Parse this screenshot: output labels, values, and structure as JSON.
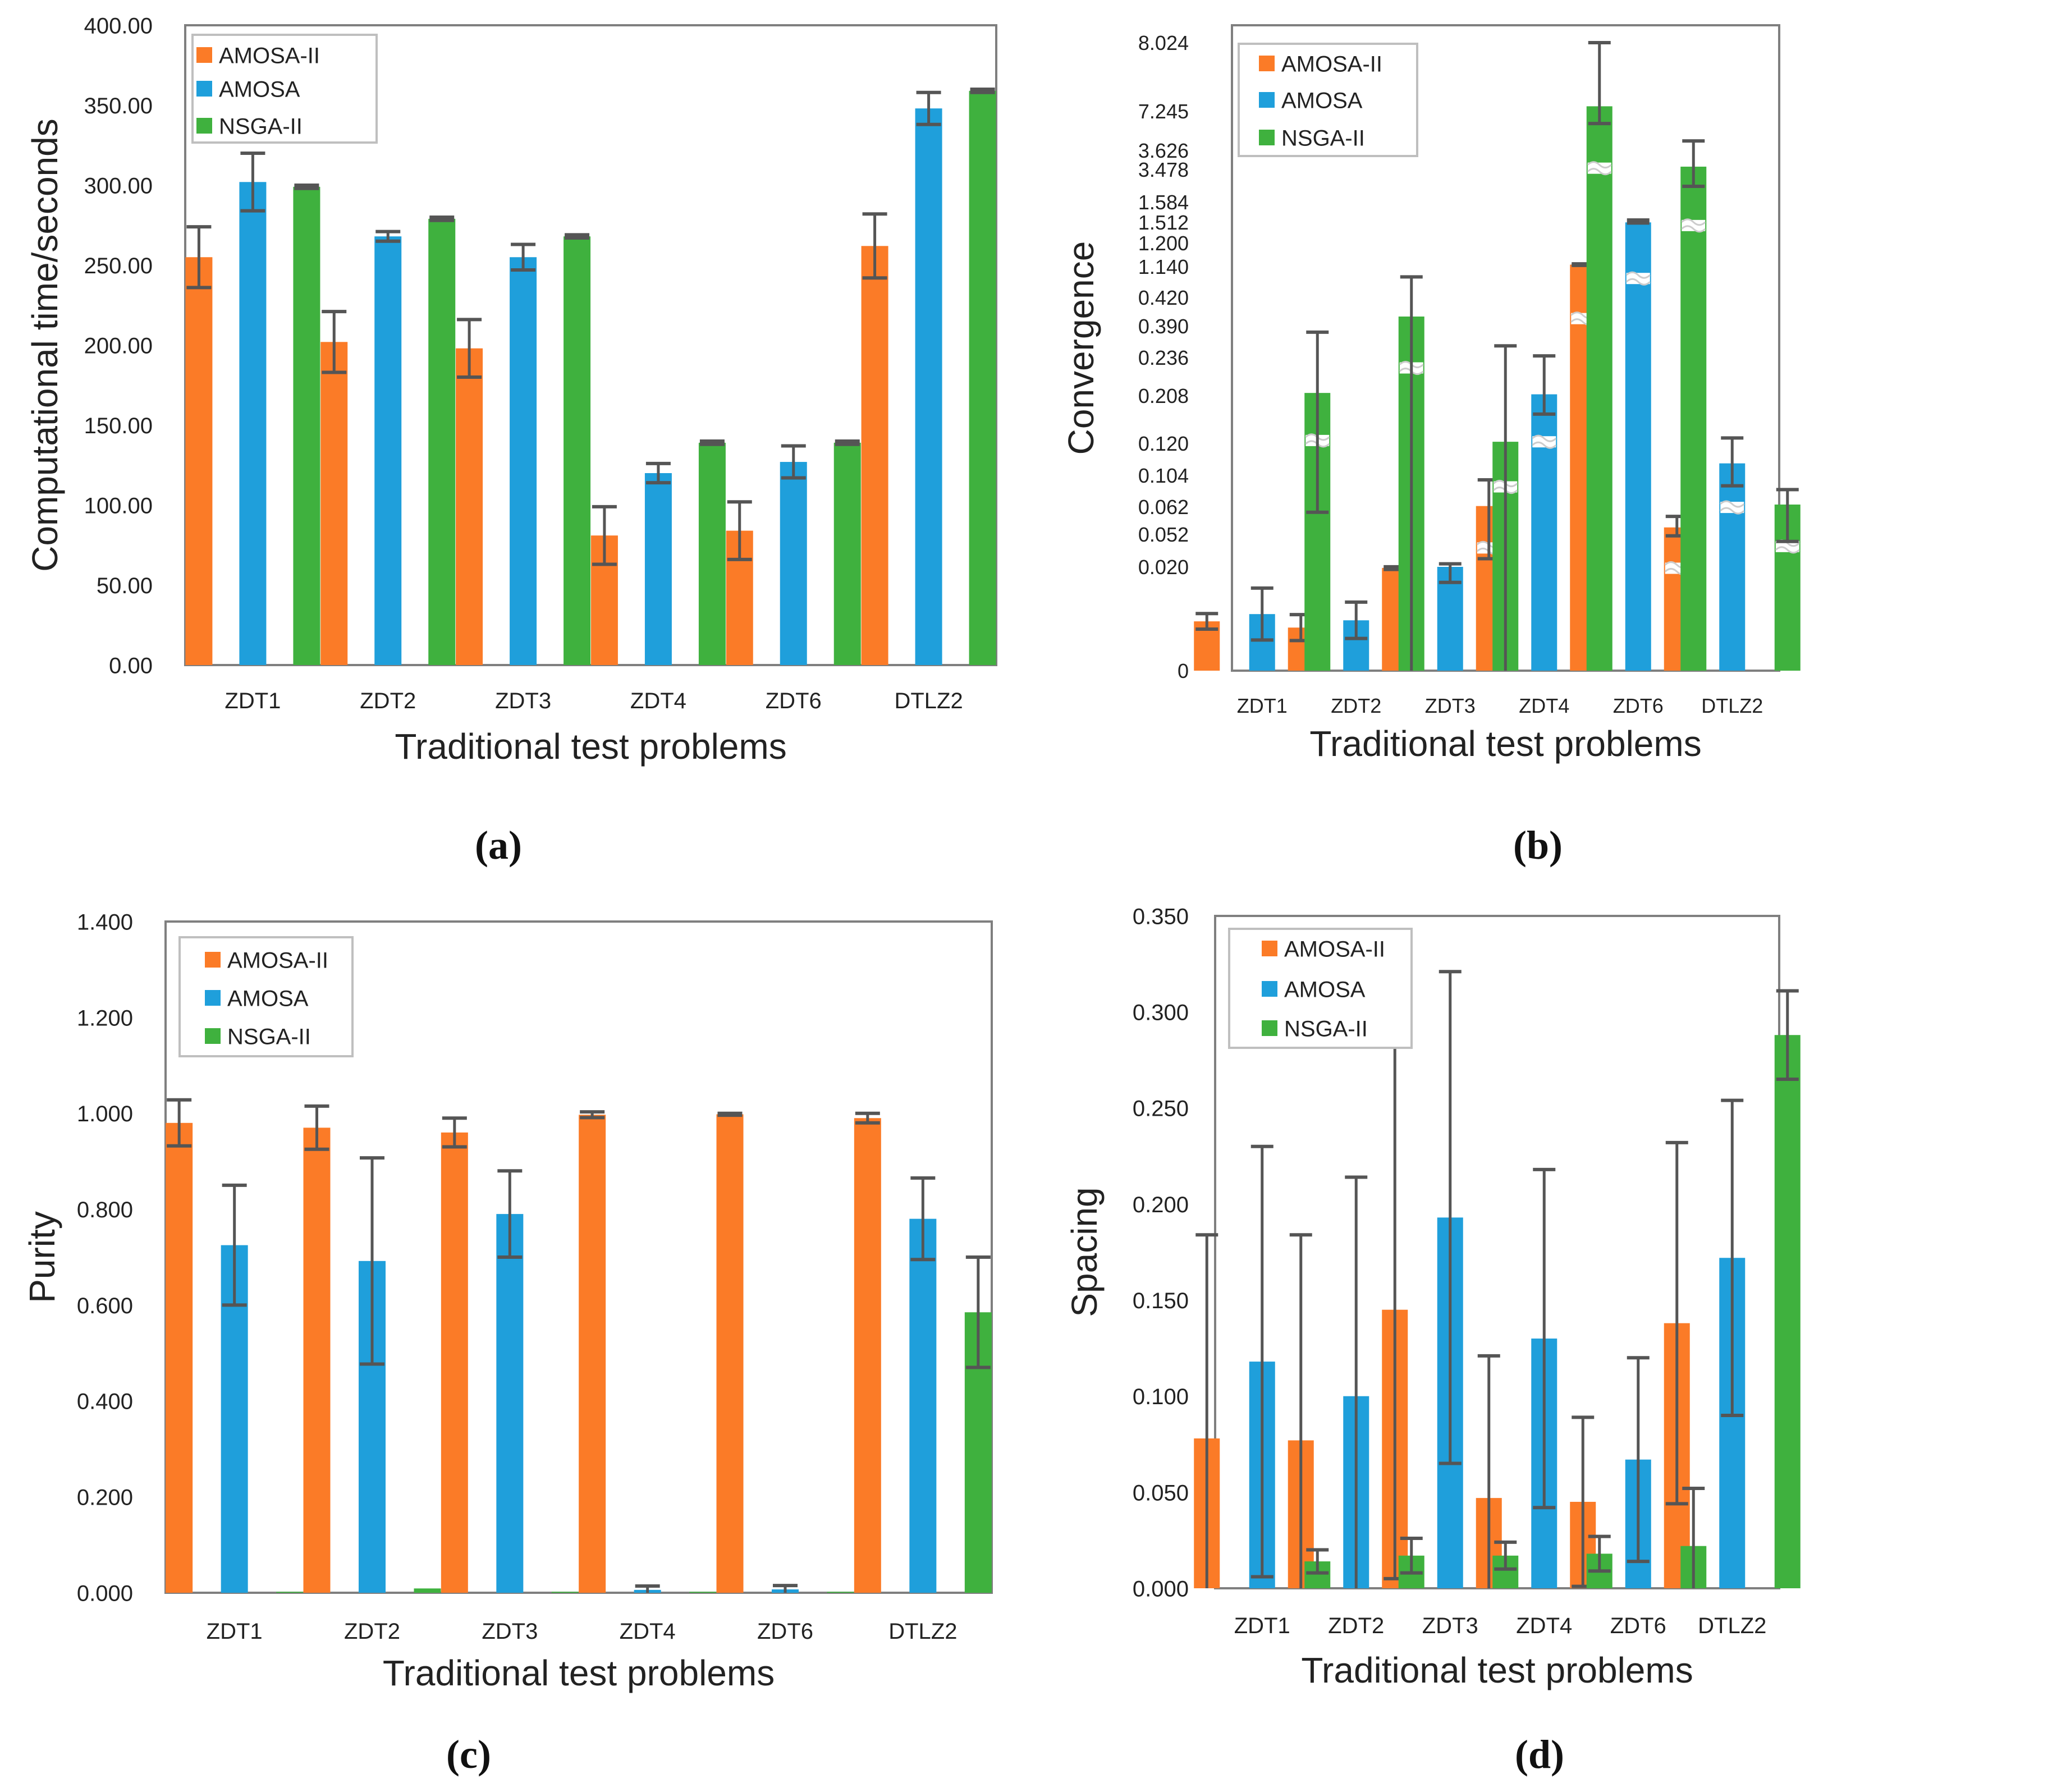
{
  "colors": {
    "AMOSA-II": "#fb7b27",
    "AMOSA": "#1f9fdb",
    "NSGA-II": "#3fb13e",
    "error_bar": "#555555",
    "frame": "#7f7f7f",
    "legend_border": "#bfbfbf"
  },
  "chart_data": [
    {
      "panel": "(a)",
      "type": "bar",
      "ylabel": "Computational time/seconds",
      "xlabel": "Traditional test problems",
      "categories": [
        "ZDT1",
        "ZDT2",
        "ZDT3",
        "ZDT4",
        "ZDT6",
        "DTLZ2"
      ],
      "ylim": [
        0,
        400
      ],
      "yticks": [
        "0.00",
        "50.00",
        "100.00",
        "150.00",
        "200.00",
        "250.00",
        "300.00",
        "350.00",
        "400.00"
      ],
      "legend": [
        "AMOSA-II",
        "AMOSA",
        "NSGA-II"
      ],
      "legend_position": "top-left",
      "series": [
        {
          "name": "AMOSA-II",
          "values": [
            255,
            202,
            198,
            81,
            84,
            262
          ],
          "errors": [
            19,
            19,
            18,
            18,
            18,
            20
          ]
        },
        {
          "name": "AMOSA",
          "values": [
            302,
            268,
            255,
            120,
            127,
            348
          ],
          "errors": [
            18,
            3,
            8,
            6,
            10,
            10
          ]
        },
        {
          "name": "NSGA-II",
          "values": [
            299,
            279,
            268,
            139,
            139,
            359
          ],
          "errors": [
            1,
            1,
            1,
            1,
            1,
            1
          ]
        }
      ]
    },
    {
      "panel": "(b)",
      "type": "bar",
      "scale": "broken",
      "ylabel": "Convergence",
      "xlabel": "Traditional test problems",
      "categories": [
        "ZDT1",
        "ZDT2",
        "ZDT3",
        "ZDT4",
        "ZDT6",
        "DTLZ2"
      ],
      "yticks": [
        "0",
        "0.020",
        "0.052",
        "0.062",
        "0.104",
        "0.120",
        "0.208",
        "0.236",
        "0.390",
        "0.420",
        "1.140",
        "1.200",
        "1.512",
        "1.584",
        "3.478",
        "3.626",
        "7.245",
        "8.024"
      ],
      "legend": [
        "AMOSA-II",
        "AMOSA",
        "NSGA-II"
      ],
      "legend_position": "top-left",
      "series": [
        {
          "name": "AMOSA-II",
          "values": [
            0.0095,
            0.0083,
            0.0198,
            0.063,
            1.145,
            0.0545
          ],
          "errors": [
            0.0015,
            0.0025,
            0.0003,
            0.035,
            0.002,
            0.004
          ],
          "broken": [
            false,
            false,
            false,
            true,
            true,
            true
          ]
        },
        {
          "name": "AMOSA",
          "values": [
            0.0109,
            0.0097,
            0.02,
            0.209,
            1.51,
            0.11
          ],
          "errors": [
            0.005,
            0.0035,
            0.003,
            0.035,
            0.01,
            0.02
          ],
          "broken": [
            false,
            false,
            false,
            true,
            true,
            true
          ]
        },
        {
          "name": "NSGA-II",
          "values": [
            0.21,
            0.4,
            0.123,
            7.3,
            3.5,
            0.065
          ],
          "errors": [
            0.15,
            0.5,
            0.17,
            1.2,
            1.0,
            0.02
          ],
          "broken": [
            true,
            true,
            true,
            true,
            true,
            true
          ]
        }
      ]
    },
    {
      "panel": "(c)",
      "type": "bar",
      "ylabel": "Purity",
      "xlabel": "Traditional test problems",
      "categories": [
        "ZDT1",
        "ZDT2",
        "ZDT3",
        "ZDT4",
        "ZDT6",
        "DTLZ2"
      ],
      "ylim": [
        0,
        1.4
      ],
      "yticks": [
        "0.000",
        "0.200",
        "0.400",
        "0.600",
        "0.800",
        "1.000",
        "1.200",
        "1.400"
      ],
      "legend": [
        "AMOSA-II",
        "AMOSA",
        "NSGA-II"
      ],
      "legend_position": "top-left",
      "series": [
        {
          "name": "AMOSA-II",
          "values": [
            0.98,
            0.97,
            0.96,
            0.997,
            0.998,
            0.99
          ],
          "errors": [
            0.048,
            0.045,
            0.03,
            0.006,
            0.002,
            0.01
          ]
        },
        {
          "name": "AMOSA",
          "values": [
            0.725,
            0.692,
            0.79,
            0.006,
            0.007,
            0.78
          ],
          "errors": [
            0.125,
            0.215,
            0.09,
            0.008,
            0.008,
            0.085
          ]
        },
        {
          "name": "NSGA-II",
          "values": [
            0.002,
            0.009,
            0.002,
            0.002,
            0.002,
            0.585
          ],
          "errors": [
            0,
            0,
            0,
            0,
            0,
            0.115
          ]
        }
      ]
    },
    {
      "panel": "(d)",
      "type": "bar",
      "ylabel": "Spacing",
      "xlabel": "Traditional test problems",
      "categories": [
        "ZDT1",
        "ZDT2",
        "ZDT3",
        "ZDT4",
        "ZDT6",
        "DTLZ2"
      ],
      "ylim": [
        0,
        0.35
      ],
      "yticks": [
        "0.000",
        "0.050",
        "0.100",
        "0.150",
        "0.200",
        "0.250",
        "0.300",
        "0.350"
      ],
      "legend": [
        "AMOSA-II",
        "AMOSA",
        "NSGA-II"
      ],
      "legend_position": "top-left",
      "series": [
        {
          "name": "AMOSA-II",
          "values": [
            0.078,
            0.077,
            0.145,
            0.047,
            0.045,
            0.138
          ],
          "errors": [
            0.106,
            0.107,
            0.14,
            0.074,
            0.044,
            0.094
          ]
        },
        {
          "name": "AMOSA",
          "values": [
            0.118,
            0.1,
            0.193,
            0.13,
            0.067,
            0.172
          ],
          "errors": [
            0.112,
            0.114,
            0.128,
            0.088,
            0.053,
            0.082
          ]
        },
        {
          "name": "NSGA-II",
          "values": [
            0.014,
            0.017,
            0.017,
            0.018,
            0.022,
            0.288
          ],
          "errors": [
            0.006,
            0.009,
            0.007,
            0.009,
            0.03,
            0.023
          ]
        }
      ]
    }
  ]
}
